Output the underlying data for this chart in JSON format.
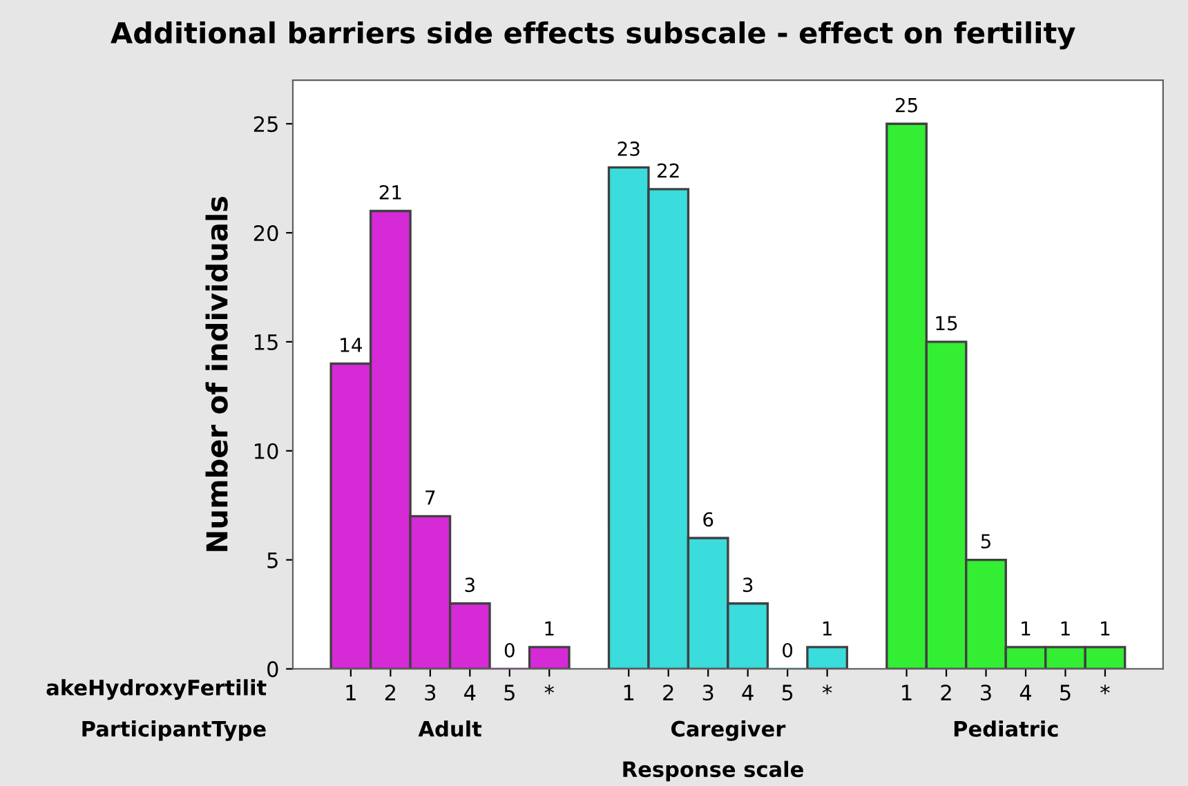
{
  "chart_data": {
    "type": "bar",
    "title": "Additional barriers side effects subscale - effect on fertility",
    "xlabel": "Response scale",
    "ylabel": "Number of individuals",
    "categories": [
      "1",
      "2",
      "3",
      "4",
      "5",
      "*",
      null,
      "1",
      "2",
      "3",
      "4",
      "5",
      "*",
      null,
      "1",
      "2",
      "3",
      "4",
      "5",
      "*"
    ],
    "values": [
      14,
      21,
      7,
      3,
      0,
      1,
      null,
      23,
      22,
      6,
      3,
      0,
      1,
      null,
      25,
      15,
      5,
      1,
      1,
      1
    ],
    "colors": [
      "#d62ad6",
      "#d62ad6",
      "#d62ad6",
      "#d62ad6",
      "#d62ad6",
      "#d62ad6",
      null,
      "#3adcdc",
      "#3adcdc",
      "#3adcdc",
      "#3adcdc",
      "#3adcdc",
      "#3adcdc",
      null,
      "#33ee33",
      "#33ee33",
      "#33ee33",
      "#33ee33",
      "#33ee33",
      "#33ee33"
    ],
    "annotations": [
      "akeHydroxyFertilit",
      "ParticipantType",
      "Adult",
      "Caregiver",
      "Pediatric"
    ],
    "ylim": [
      0,
      27
    ],
    "yticks": [
      0,
      5,
      10,
      15,
      20,
      25
    ],
    "data_labels": true,
    "grid": false,
    "legend": false
  }
}
